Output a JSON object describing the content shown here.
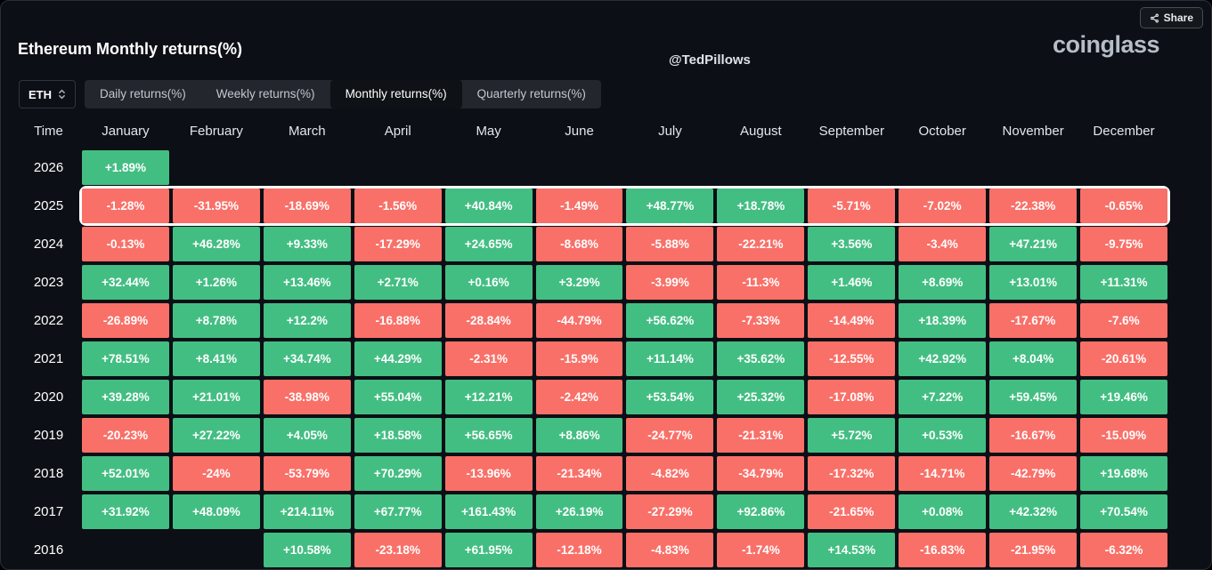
{
  "page": {
    "title": "Ethereum Monthly returns(%)",
    "watermark": "@TedPillows",
    "brand": "coinglass",
    "share_label": "Share"
  },
  "controls": {
    "symbol": "ETH",
    "tabs": [
      {
        "label": "Daily returns(%)",
        "active": false
      },
      {
        "label": "Weekly returns(%)",
        "active": false
      },
      {
        "label": "Monthly returns(%)",
        "active": true
      },
      {
        "label": "Quarterly returns(%)",
        "active": false
      }
    ]
  },
  "colors": {
    "positive": "#43be83",
    "negative": "#f97068",
    "background": "#0c0f15",
    "highlight_border": "#ffffff"
  },
  "table": {
    "time_header": "Time",
    "months": [
      "January",
      "February",
      "March",
      "April",
      "May",
      "June",
      "July",
      "August",
      "September",
      "October",
      "November",
      "December"
    ],
    "rows": [
      {
        "year": "2026",
        "highlight": false,
        "values": [
          "+1.89%",
          null,
          null,
          null,
          null,
          null,
          null,
          null,
          null,
          null,
          null,
          null
        ]
      },
      {
        "year": "2025",
        "highlight": true,
        "values": [
          "-1.28%",
          "-31.95%",
          "-18.69%",
          "-1.56%",
          "+40.84%",
          "-1.49%",
          "+48.77%",
          "+18.78%",
          "-5.71%",
          "-7.02%",
          "-22.38%",
          "-0.65%"
        ]
      },
      {
        "year": "2024",
        "highlight": false,
        "values": [
          "-0.13%",
          "+46.28%",
          "+9.33%",
          "-17.29%",
          "+24.65%",
          "-8.68%",
          "-5.88%",
          "-22.21%",
          "+3.56%",
          "-3.4%",
          "+47.21%",
          "-9.75%"
        ]
      },
      {
        "year": "2023",
        "highlight": false,
        "values": [
          "+32.44%",
          "+1.26%",
          "+13.46%",
          "+2.71%",
          "+0.16%",
          "+3.29%",
          "-3.99%",
          "-11.3%",
          "+1.46%",
          "+8.69%",
          "+13.01%",
          "+11.31%"
        ]
      },
      {
        "year": "2022",
        "highlight": false,
        "values": [
          "-26.89%",
          "+8.78%",
          "+12.2%",
          "-16.88%",
          "-28.84%",
          "-44.79%",
          "+56.62%",
          "-7.33%",
          "-14.49%",
          "+18.39%",
          "-17.67%",
          "-7.6%"
        ]
      },
      {
        "year": "2021",
        "highlight": false,
        "values": [
          "+78.51%",
          "+8.41%",
          "+34.74%",
          "+44.29%",
          "-2.31%",
          "-15.9%",
          "+11.14%",
          "+35.62%",
          "-12.55%",
          "+42.92%",
          "+8.04%",
          "-20.61%"
        ]
      },
      {
        "year": "2020",
        "highlight": false,
        "values": [
          "+39.28%",
          "+21.01%",
          "-38.98%",
          "+55.04%",
          "+12.21%",
          "-2.42%",
          "+53.54%",
          "+25.32%",
          "-17.08%",
          "+7.22%",
          "+59.45%",
          "+19.46%"
        ]
      },
      {
        "year": "2019",
        "highlight": false,
        "values": [
          "-20.23%",
          "+27.22%",
          "+4.05%",
          "+18.58%",
          "+56.65%",
          "+8.86%",
          "-24.77%",
          "-21.31%",
          "+5.72%",
          "+0.53%",
          "-16.67%",
          "-15.09%"
        ]
      },
      {
        "year": "2018",
        "highlight": false,
        "values": [
          "+52.01%",
          "-24%",
          "-53.79%",
          "+70.29%",
          "-13.96%",
          "-21.34%",
          "-4.82%",
          "-34.79%",
          "-17.32%",
          "-14.71%",
          "-42.79%",
          "+19.68%"
        ]
      },
      {
        "year": "2017",
        "highlight": false,
        "values": [
          "+31.92%",
          "+48.09%",
          "+214.11%",
          "+67.77%",
          "+161.43%",
          "+26.19%",
          "-27.29%",
          "+92.86%",
          "-21.65%",
          "+0.08%",
          "+42.32%",
          "+70.54%"
        ]
      },
      {
        "year": "2016",
        "highlight": false,
        "values": [
          null,
          null,
          "+10.58%",
          "-23.18%",
          "+61.95%",
          "-12.18%",
          "-4.83%",
          "-1.74%",
          "+14.53%",
          "-16.83%",
          "-21.95%",
          "-6.32%"
        ]
      }
    ]
  }
}
